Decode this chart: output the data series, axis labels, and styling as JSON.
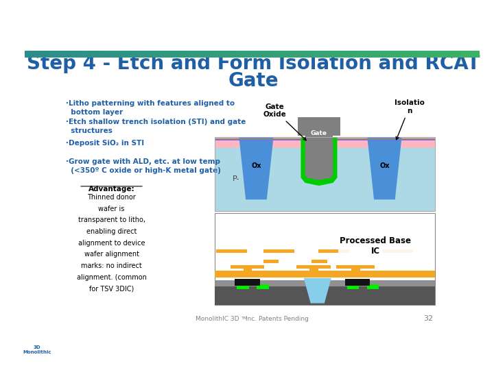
{
  "title_line1": "Step 4 - Etch and Form Isolation and RCAT",
  "title_line2": "Gate",
  "title_color": "#1F5FA6",
  "title_fontsize": 20,
  "bg_color": "#FFFFFF",
  "bullet_color": "#1F5FA6",
  "bullet_texts": [
    "·Litho patterning with features aligned to\n  bottom layer",
    "·Etch shallow trench isolation (STI) and gate\n  structures",
    "·Deposit SiO₂ in STI",
    "·Grow gate with ALD, etc. at low temp\n  (<350º C oxide or high-K metal gate)"
  ],
  "advantage_title": "Advantage:",
  "advantage_texts": [
    "Thinned donor",
    "wafer is",
    "transparent to litho,",
    "enabling direct",
    "alignment to device",
    "wafer alignment",
    "marks: no indirect",
    "alignment. (common",
    "for TSV 3DIC)"
  ],
  "footer_left": "MonolithIC 3D",
  "footer_tm": "TM",
  "footer_right": " Inc. Patents Pending",
  "footer_page": "32",
  "c_lightblue": "#ADD8E6",
  "c_blue": "#4A90D9",
  "c_pink": "#FFB6C1",
  "c_gray": "#808080",
  "c_green": "#00CC00",
  "c_darkgray": "#555555",
  "c_white": "#FFFFFF",
  "c_medgray": "#909090",
  "c_gold": "#F5A623",
  "c_teal": "#87CEEB",
  "c_black": "#111111"
}
